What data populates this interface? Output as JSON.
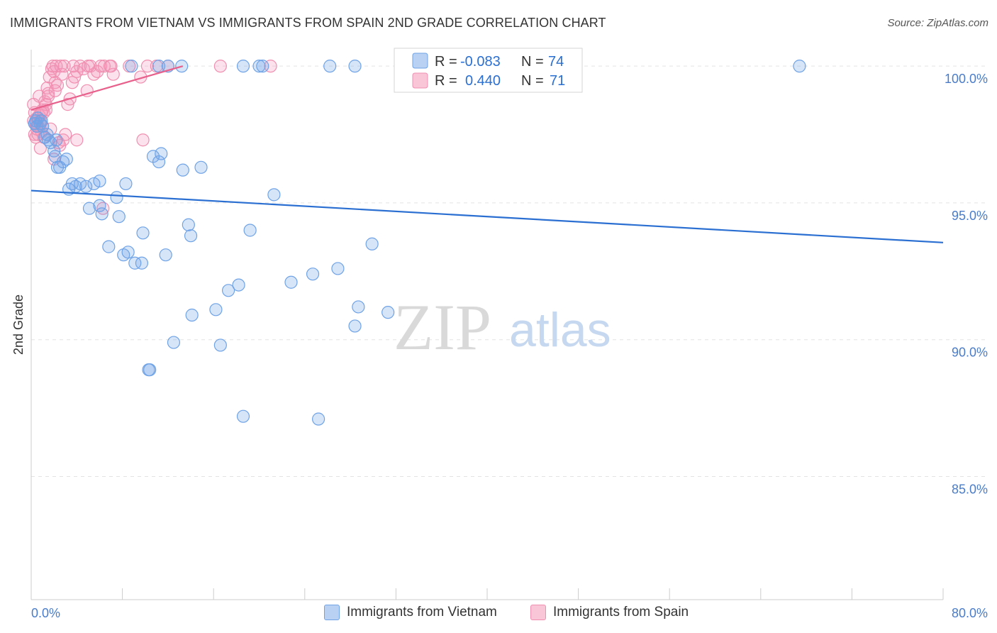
{
  "title": "IMMIGRANTS FROM VIETNAM VS IMMIGRANTS FROM SPAIN 2ND GRADE CORRELATION CHART",
  "source": "Source: ZipAtlas.com",
  "watermark": {
    "zip": "ZIP",
    "atlas": "atlas"
  },
  "colors": {
    "blue": "#6fa3e6",
    "blue_line": "#2a6fd1",
    "pink": "#f08fb0",
    "pink_line": "#e8608c",
    "tick": "#4a7cc9"
  },
  "legend": {
    "r_label": "R =",
    "n_label": "N =",
    "vietnam": {
      "r": "-0.083",
      "n": "74"
    },
    "spain": {
      "r": "0.440",
      "n": "71"
    }
  },
  "bottom_legend": {
    "vietnam": "Immigrants from Vietnam",
    "spain": "Immigrants from Spain"
  },
  "chart_data": {
    "type": "scatter",
    "title": "IMMIGRANTS FROM VIETNAM VS IMMIGRANTS FROM SPAIN 2ND GRADE CORRELATION CHART",
    "xlabel": "",
    "ylabel": "2nd Grade",
    "xlim": [
      0,
      80
    ],
    "ylim": [
      80.5,
      100.6
    ],
    "x_tick_labels": [
      "0.0%",
      "80.0%"
    ],
    "y_ticks": [
      85,
      90,
      95,
      100
    ],
    "y_tick_labels": [
      "85.0%",
      "90.0%",
      "95.0%",
      "100.0%"
    ],
    "series": [
      {
        "name": "Immigrants from Vietnam",
        "r": -0.083,
        "n": 74,
        "trend": {
          "x": [
            0,
            80
          ],
          "y": [
            95.45,
            93.55
          ]
        },
        "points": [
          [
            0.3,
            97.9
          ],
          [
            0.5,
            97.8
          ],
          [
            0.6,
            98.1
          ],
          [
            0.8,
            97.9
          ],
          [
            1.0,
            97.8
          ],
          [
            1.2,
            97.4
          ],
          [
            1.5,
            97.3
          ],
          [
            1.7,
            97.2
          ],
          [
            2.0,
            96.9
          ],
          [
            2.1,
            96.7
          ],
          [
            2.3,
            96.3
          ],
          [
            2.5,
            96.3
          ],
          [
            2.8,
            96.5
          ],
          [
            3.1,
            96.6
          ],
          [
            3.3,
            95.5
          ],
          [
            3.6,
            95.7
          ],
          [
            3.9,
            95.6
          ],
          [
            4.3,
            95.7
          ],
          [
            5.5,
            95.7
          ],
          [
            5.1,
            94.8
          ],
          [
            6.0,
            94.9
          ],
          [
            6.2,
            94.6
          ],
          [
            6.8,
            93.4
          ],
          [
            7.5,
            95.2
          ],
          [
            7.7,
            94.5
          ],
          [
            8.3,
            95.7
          ],
          [
            8.5,
            93.2
          ],
          [
            8.1,
            93.1
          ],
          [
            9.1,
            92.8
          ],
          [
            9.7,
            92.8
          ],
          [
            9.8,
            93.9
          ],
          [
            11.2,
            96.5
          ],
          [
            11.4,
            96.8
          ],
          [
            11.8,
            93.1
          ],
          [
            12.5,
            89.9
          ],
          [
            13.3,
            96.2
          ],
          [
            13.8,
            94.2
          ],
          [
            14.0,
            93.8
          ],
          [
            14.1,
            90.9
          ],
          [
            14.9,
            96.3
          ],
          [
            16.2,
            91.1
          ],
          [
            16.6,
            89.8
          ],
          [
            17.3,
            91.8
          ],
          [
            18.2,
            92.0
          ],
          [
            18.6,
            87.2
          ],
          [
            19.2,
            94.0
          ],
          [
            21.3,
            95.3
          ],
          [
            22.8,
            92.1
          ],
          [
            24.7,
            92.4
          ],
          [
            25.2,
            87.1
          ],
          [
            26.9,
            92.6
          ],
          [
            28.4,
            90.5
          ],
          [
            28.7,
            91.2
          ],
          [
            29.9,
            93.5
          ],
          [
            31.3,
            91.0
          ],
          [
            10.4,
            88.9
          ],
          [
            10.3,
            88.9
          ],
          [
            8.8,
            100.0
          ],
          [
            11.2,
            100.0
          ],
          [
            13.2,
            100.0
          ],
          [
            18.6,
            100.0
          ],
          [
            20.0,
            100.0
          ],
          [
            26.2,
            100.0
          ],
          [
            28.4,
            100.0
          ],
          [
            67.4,
            100.0
          ],
          [
            20.3,
            100.0
          ],
          [
            10.7,
            96.7
          ],
          [
            6.0,
            95.8
          ],
          [
            4.8,
            95.6
          ],
          [
            2.2,
            97.3
          ],
          [
            1.4,
            97.5
          ],
          [
            0.9,
            98.0
          ],
          [
            12.0,
            100.0
          ],
          [
            0.4,
            98.0
          ]
        ]
      },
      {
        "name": "Immigrants from Spain",
        "r": 0.44,
        "n": 71,
        "trend": {
          "x": [
            0,
            13.3
          ],
          "y": [
            98.4,
            100.0
          ]
        },
        "points": [
          [
            0.2,
            98.6
          ],
          [
            0.3,
            98.3
          ],
          [
            0.4,
            97.9
          ],
          [
            0.5,
            98.1
          ],
          [
            0.6,
            97.8
          ],
          [
            0.7,
            98.2
          ],
          [
            0.8,
            98.0
          ],
          [
            0.9,
            97.6
          ],
          [
            1.0,
            98.4
          ],
          [
            1.1,
            98.3
          ],
          [
            1.2,
            98.7
          ],
          [
            1.3,
            98.4
          ],
          [
            1.4,
            99.2
          ],
          [
            1.5,
            99.0
          ],
          [
            1.6,
            99.6
          ],
          [
            1.8,
            99.9
          ],
          [
            1.9,
            100.0
          ],
          [
            2.0,
            99.8
          ],
          [
            2.1,
            99.4
          ],
          [
            2.2,
            100.0
          ],
          [
            2.3,
            99.3
          ],
          [
            2.5,
            97.1
          ],
          [
            2.6,
            100.0
          ],
          [
            2.7,
            99.7
          ],
          [
            2.9,
            100.0
          ],
          [
            3.2,
            98.6
          ],
          [
            3.4,
            98.8
          ],
          [
            3.6,
            99.4
          ],
          [
            3.8,
            99.6
          ],
          [
            4.0,
            99.8
          ],
          [
            4.3,
            100.0
          ],
          [
            4.6,
            99.9
          ],
          [
            4.9,
            99.1
          ],
          [
            5.2,
            100.0
          ],
          [
            5.5,
            99.7
          ],
          [
            5.8,
            99.8
          ],
          [
            6.1,
            100.0
          ],
          [
            6.4,
            100.0
          ],
          [
            6.9,
            100.0
          ],
          [
            7.2,
            99.7
          ],
          [
            8.6,
            100.0
          ],
          [
            9.6,
            99.6
          ],
          [
            9.8,
            97.3
          ],
          [
            10.2,
            100.0
          ],
          [
            11.0,
            100.0
          ],
          [
            12.0,
            100.0
          ],
          [
            16.6,
            100.0
          ],
          [
            21.0,
            100.0
          ],
          [
            0.3,
            97.5
          ],
          [
            0.4,
            97.4
          ],
          [
            0.6,
            97.5
          ],
          [
            0.8,
            97.0
          ],
          [
            1.0,
            97.8
          ],
          [
            1.3,
            98.6
          ],
          [
            1.7,
            97.7
          ],
          [
            2.0,
            96.6
          ],
          [
            2.4,
            97.2
          ],
          [
            2.8,
            97.3
          ],
          [
            3.0,
            97.5
          ],
          [
            0.2,
            98.0
          ],
          [
            0.5,
            97.7
          ],
          [
            0.9,
            98.3
          ],
          [
            1.1,
            97.4
          ],
          [
            4.0,
            97.3
          ],
          [
            6.3,
            94.8
          ],
          [
            0.7,
            98.9
          ],
          [
            1.5,
            98.9
          ],
          [
            2.1,
            99.1
          ],
          [
            3.7,
            100.0
          ],
          [
            5.0,
            100.0
          ],
          [
            7.0,
            100.0
          ]
        ]
      }
    ]
  }
}
